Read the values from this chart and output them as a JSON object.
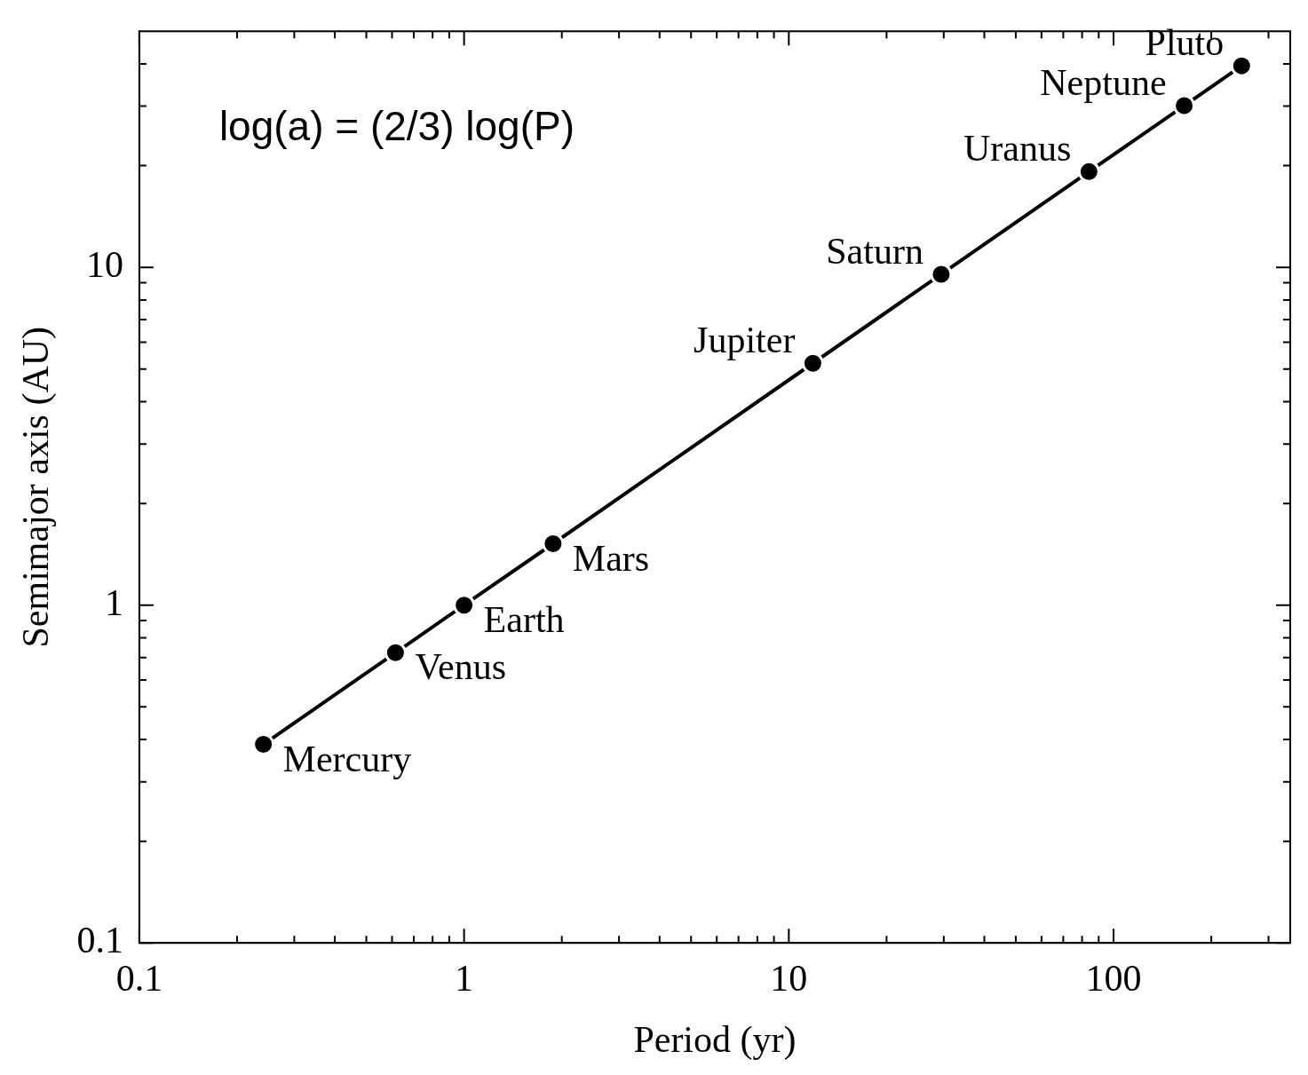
{
  "chart_data": {
    "type": "line",
    "xlabel": "Period (yr)",
    "ylabel": "Semimajor axis (AU)",
    "x": [
      0.241,
      0.615,
      1,
      1.88,
      11.86,
      29.46,
      84,
      165,
      248
    ],
    "values": [
      0.387,
      0.723,
      1,
      1.52,
      5.2,
      9.54,
      19.2,
      30.1,
      39.5
    ],
    "color": "#000000",
    "marker": "circle",
    "line_style": "solid",
    "log": "xy",
    "grid": false,
    "legend": false,
    "xlim": [
      0.1,
      350
    ],
    "ylim": [
      0.1,
      50
    ],
    "xticks": [
      0.1,
      {
        "value": 0.2,
        "label": null
      },
      {
        "value": 0.3,
        "label": null
      },
      {
        "value": 0.4,
        "label": null
      },
      {
        "value": 0.5,
        "label": null
      },
      {
        "value": 0.6,
        "label": null
      },
      {
        "value": 0.7,
        "label": null
      },
      {
        "value": 0.8,
        "label": null
      },
      {
        "value": 0.9,
        "label": null
      },
      1,
      {
        "value": 2,
        "label": null
      },
      {
        "value": 3,
        "label": null
      },
      {
        "value": 4,
        "label": null
      },
      {
        "value": 5,
        "label": null
      },
      {
        "value": 6,
        "label": null
      },
      {
        "value": 7,
        "label": null
      },
      {
        "value": 8,
        "label": null
      },
      {
        "value": 9,
        "label": null
      },
      10,
      {
        "value": 20,
        "label": null
      },
      {
        "value": 30,
        "label": null
      },
      {
        "value": 40,
        "label": null
      },
      {
        "value": 50,
        "label": null
      },
      {
        "value": 60,
        "label": null
      },
      {
        "value": 70,
        "label": null
      },
      {
        "value": 80,
        "label": null
      },
      {
        "value": 90,
        "label": null
      },
      100,
      {
        "value": 200,
        "label": null
      },
      {
        "value": 300,
        "label": null
      }
    ],
    "yticks": [
      0.1,
      {
        "value": 0.2,
        "label": null
      },
      {
        "value": 0.3,
        "label": null
      },
      {
        "value": 0.4,
        "label": null
      },
      {
        "value": 0.5,
        "label": null
      },
      {
        "value": 0.6,
        "label": null
      },
      {
        "value": 0.7,
        "label": null
      },
      {
        "value": 0.8,
        "label": null
      },
      {
        "value": 0.9,
        "label": null
      },
      1,
      {
        "value": 2,
        "label": null
      },
      {
        "value": 3,
        "label": null
      },
      {
        "value": 4,
        "label": null
      },
      {
        "value": 5,
        "label": null
      },
      {
        "value": 6,
        "label": null
      },
      {
        "value": 7,
        "label": null
      },
      {
        "value": 8,
        "label": null
      },
      {
        "value": 9,
        "label": null
      },
      10,
      {
        "value": 20,
        "label": null
      },
      {
        "value": 30,
        "label": null
      },
      {
        "value": 40,
        "label": null
      }
    ],
    "annotations": [
      "log(a) = (2/3) log(P)",
      {
        "text": "Mercury",
        "x": 0.241,
        "y": 0.387
      },
      {
        "text": "Venus",
        "x": 0.615,
        "y": 0.723
      },
      {
        "text": "Earth",
        "x": 1,
        "y": 1
      },
      {
        "text": "Mars",
        "x": 1.88,
        "y": 1.52
      },
      {
        "text": "Jupiter",
        "x": 11.86,
        "y": 5.2
      },
      {
        "text": "Saturn",
        "x": 29.46,
        "y": 9.54
      },
      {
        "text": "Uranus",
        "x": 84,
        "y": 19.2
      },
      {
        "text": "Neptune",
        "x": 165,
        "y": 30.1
      },
      {
        "text": "Pluto",
        "x": 248,
        "y": 39.5
      }
    ]
  }
}
